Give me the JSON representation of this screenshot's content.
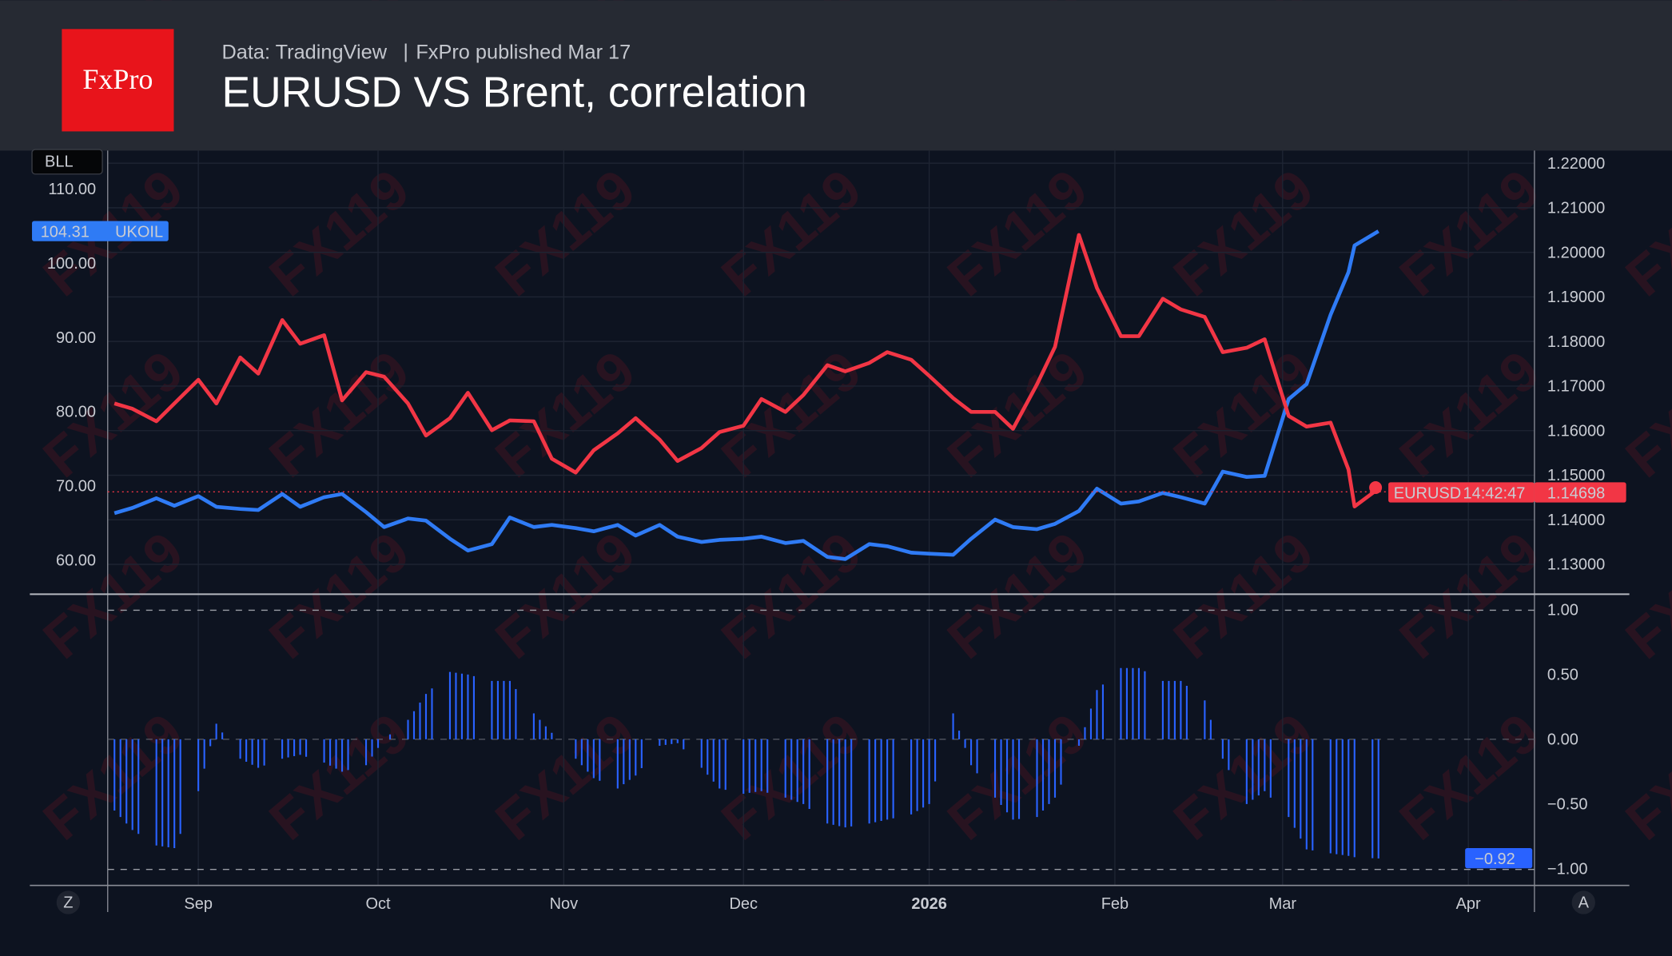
{
  "header": {
    "logo_text": "FxPro",
    "source": "Data: TradingView",
    "separator": "|",
    "published": "FxPro published Mar 17",
    "title": "EURUSD VS Brent, correlation"
  },
  "watermark": "FX119",
  "colors": {
    "eurusd": "#f23645",
    "ukoil": "#2f7bf5",
    "correlation": "#2962ff",
    "logo": "#e8141b"
  },
  "left_axis_badge": "BLL",
  "bottom_left_button": "Z",
  "bottom_right_button": "A",
  "labels": {
    "ukoil_value": "104.31",
    "ukoil_name": "UKOIL",
    "eurusd_name": "EURUSD",
    "eurusd_value": "1.14698",
    "eurusd_time": "14:42:47",
    "corr_value": "−0.92"
  },
  "chart_data": [
    {
      "type": "line",
      "x_ticks": [
        "Sep",
        "Oct",
        "Nov",
        "Dec",
        "2026",
        "Feb",
        "Mar",
        "Apr"
      ],
      "left_axis": {
        "ticks": [
          "110.00",
          "100.00",
          "90.00",
          "80.00",
          "70.00",
          "60.00"
        ],
        "range": [
          60,
          110
        ]
      },
      "right_axis": {
        "ticks": [
          "1.22000",
          "1.21000",
          "1.20000",
          "1.19000",
          "1.18000",
          "1.17000",
          "1.16000",
          "1.15000",
          "1.14000",
          "1.13000"
        ],
        "range": [
          1.13,
          1.22
        ]
      },
      "grid": true,
      "dates": [
        "2025-08-18",
        "2025-08-21",
        "2025-08-25",
        "2025-08-28",
        "2025-09-01",
        "2025-09-04",
        "2025-09-08",
        "2025-09-11",
        "2025-09-15",
        "2025-09-18",
        "2025-09-22",
        "2025-09-25",
        "2025-09-29",
        "2025-10-02",
        "2025-10-06",
        "2025-10-09",
        "2025-10-13",
        "2025-10-16",
        "2025-10-20",
        "2025-10-23",
        "2025-10-27",
        "2025-10-30",
        "2025-11-03",
        "2025-11-06",
        "2025-11-10",
        "2025-11-13",
        "2025-11-17",
        "2025-11-20",
        "2025-11-24",
        "2025-11-27",
        "2025-12-01",
        "2025-12-04",
        "2025-12-08",
        "2025-12-11",
        "2025-12-15",
        "2025-12-18",
        "2025-12-22",
        "2025-12-25",
        "2025-12-29",
        "2026-01-01",
        "2026-01-05",
        "2026-01-08",
        "2026-01-12",
        "2026-01-15",
        "2026-01-19",
        "2026-01-22",
        "2026-01-26",
        "2026-01-29",
        "2026-02-02",
        "2026-02-05",
        "2026-02-09",
        "2026-02-12",
        "2026-02-16",
        "2026-02-19",
        "2026-02-23",
        "2026-02-26",
        "2026-03-02",
        "2026-03-05",
        "2026-03-09",
        "2026-03-12",
        "2026-03-13",
        "2026-03-17"
      ],
      "series": [
        {
          "name": "EURUSD",
          "axis": "right",
          "values": [
            1.1661,
            1.1649,
            1.1621,
            1.1661,
            1.1714,
            1.1661,
            1.1764,
            1.1728,
            1.1848,
            1.1795,
            1.1814,
            1.1668,
            1.1731,
            1.1721,
            1.1661,
            1.1589,
            1.1628,
            1.1685,
            1.1601,
            1.1623,
            1.1621,
            1.1537,
            1.1506,
            1.1556,
            1.1594,
            1.1628,
            1.158,
            1.1532,
            1.1561,
            1.1597,
            1.1611,
            1.1671,
            1.1642,
            1.168,
            1.1747,
            1.1733,
            1.1752,
            1.1776,
            1.1759,
            1.1723,
            1.1673,
            1.1642,
            1.1642,
            1.1604,
            1.1704,
            1.1788,
            1.2039,
            1.192,
            1.1812,
            1.1812,
            1.1896,
            1.1872,
            1.1855,
            1.1776,
            1.1786,
            1.1805,
            1.1633,
            1.1609,
            1.1618,
            1.1513,
            1.143,
            1.14698
          ]
        },
        {
          "name": "UKOIL",
          "axis": "left",
          "values": [
            66.32,
            67.04,
            68.33,
            67.33,
            68.62,
            67.18,
            66.9,
            66.75,
            68.91,
            67.18,
            68.48,
            68.91,
            66.47,
            64.45,
            65.6,
            65.32,
            62.87,
            61.29,
            62.16,
            65.75,
            64.45,
            64.74,
            64.31,
            63.88,
            64.74,
            63.3,
            64.74,
            63.16,
            62.44,
            62.73,
            62.87,
            63.16,
            62.3,
            62.59,
            60.43,
            60.14,
            62.16,
            61.87,
            61.01,
            60.86,
            60.72,
            62.87,
            65.46,
            64.45,
            64.17,
            64.89,
            66.61,
            69.63,
            67.61,
            67.9,
            69.05,
            68.48,
            67.61,
            71.93,
            71.21,
            71.35,
            81.7,
            83.71,
            93.05,
            98.79,
            102.39,
            104.31
          ]
        }
      ]
    },
    {
      "type": "bar",
      "axis_ticks": [
        "1.00",
        "0.50",
        "0.00",
        "−0.50",
        "−1.00"
      ],
      "range": [
        -1,
        1
      ],
      "reference_lines": [
        1,
        0,
        -1
      ],
      "values": [
        -0.55,
        -0.7,
        -0.82,
        -0.84,
        -0.4,
        0.12,
        -0.15,
        -0.22,
        -0.15,
        -0.12,
        -0.18,
        -0.25,
        -0.2,
        0.0,
        0.15,
        0.35,
        0.52,
        0.5,
        0.45,
        0.45,
        0.2,
        0.05,
        -0.15,
        -0.3,
        -0.38,
        -0.28,
        -0.05,
        -0.03,
        -0.22,
        -0.38,
        -0.42,
        -0.4,
        -0.45,
        -0.5,
        -0.65,
        -0.68,
        -0.65,
        -0.62,
        -0.58,
        -0.5,
        0.2,
        -0.2,
        -0.45,
        -0.62,
        -0.6,
        -0.45,
        -0.05,
        0.38,
        0.55,
        0.55,
        0.45,
        0.45,
        0.3,
        -0.15,
        -0.5,
        -0.4,
        -0.6,
        -0.85,
        -0.88,
        -0.9,
        -0.91,
        -0.92
      ]
    }
  ]
}
